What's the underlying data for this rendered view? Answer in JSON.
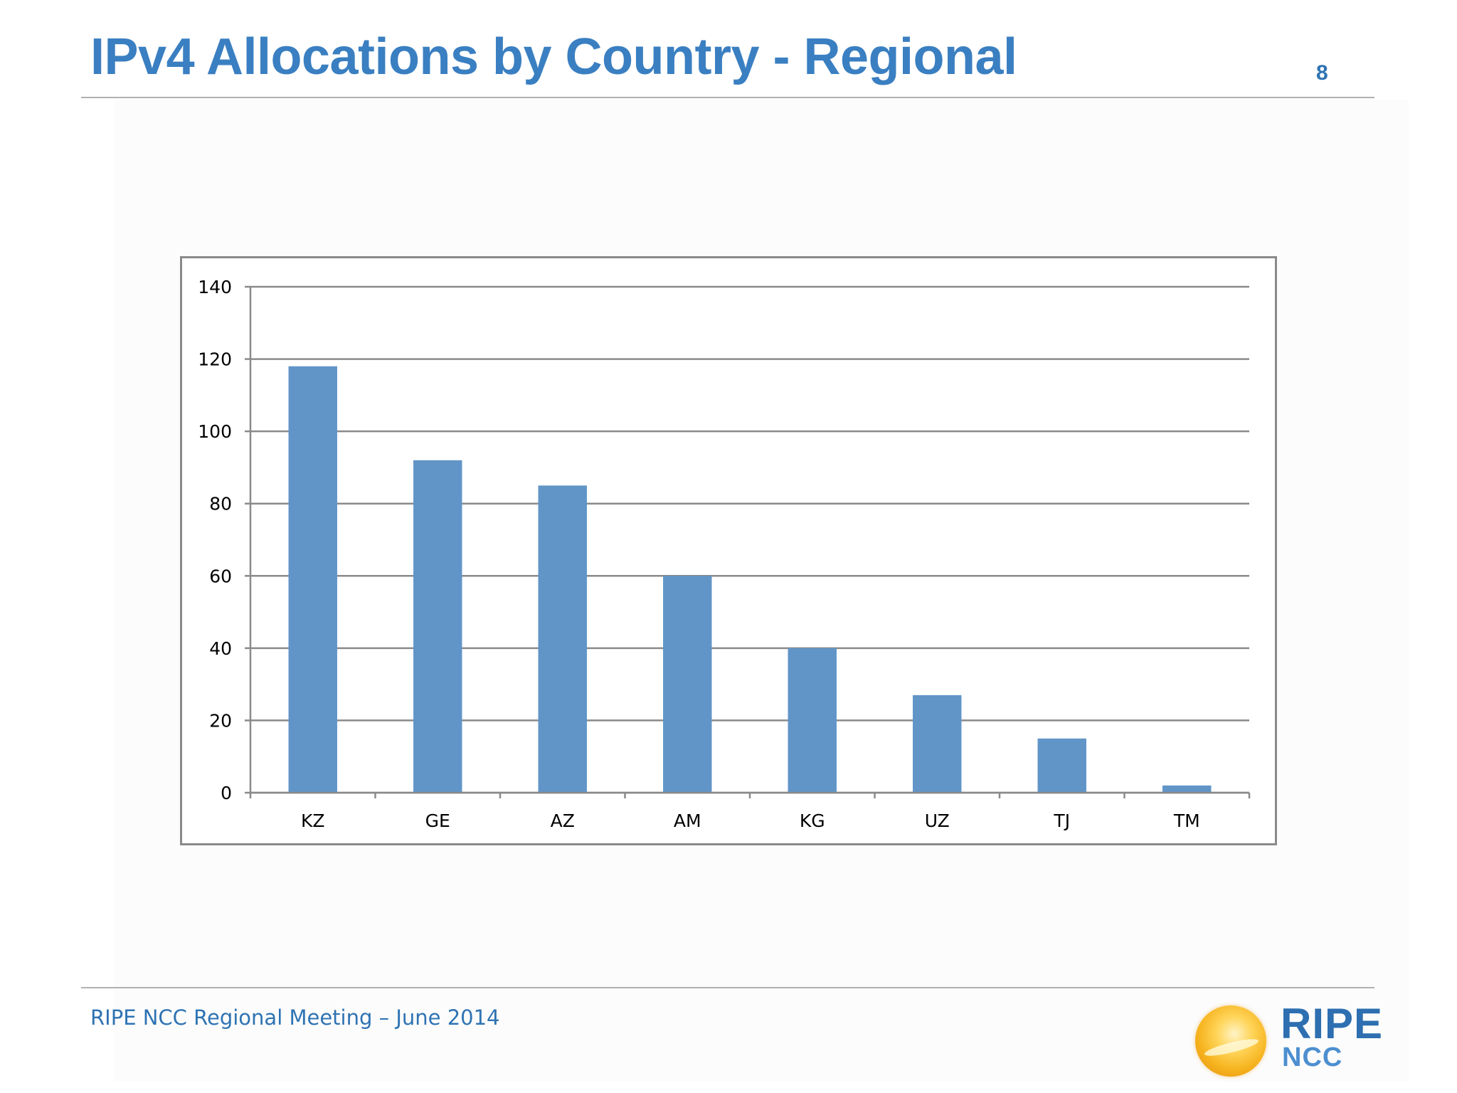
{
  "slide": {
    "title": "IPv4 Allocations by Country - Regional",
    "page_number": "8",
    "footer": "RIPE NCC Regional Meeting – June 2014",
    "logo": {
      "name": "RIPE",
      "subname": "NCC"
    }
  },
  "colors": {
    "title": "#3a7fc1",
    "bar": "#6195c8",
    "gridline": "#8a8a8a",
    "footer": "#2e73b3"
  },
  "chart_data": {
    "type": "bar",
    "categories": [
      "KZ",
      "GE",
      "AZ",
      "AM",
      "KG",
      "UZ",
      "TJ",
      "TM"
    ],
    "values": [
      118,
      92,
      85,
      60,
      40,
      27,
      15,
      2
    ],
    "ylim": [
      0,
      140
    ],
    "yticks": [
      0,
      20,
      40,
      60,
      80,
      100,
      120,
      140
    ],
    "ytick_labels": [
      "0",
      "20",
      "40",
      "60",
      "80",
      "100",
      "120",
      "140"
    ],
    "grid": true,
    "legend": "none"
  }
}
